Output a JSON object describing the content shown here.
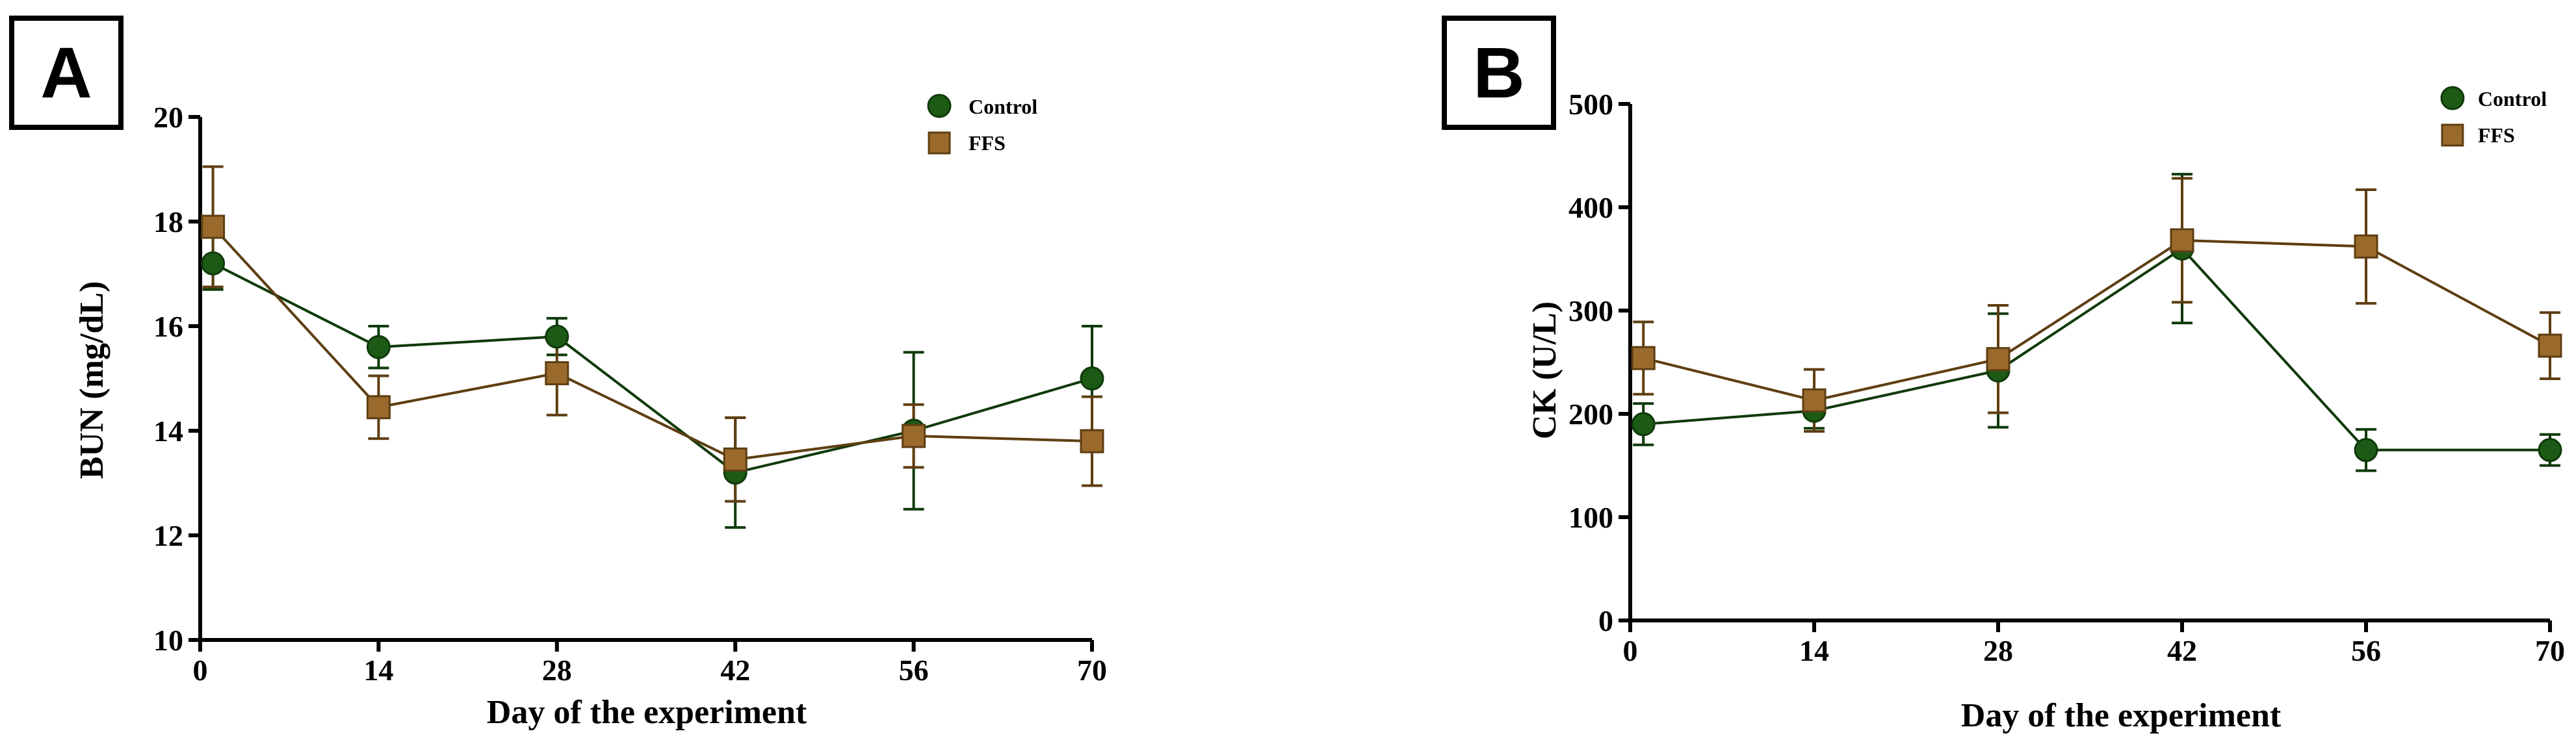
{
  "colors": {
    "control": "#1d5a15",
    "control_stroke": "#0f3a0a",
    "ffs": "#9a6a2c",
    "ffs_stroke": "#5e3e12",
    "axis": "#000000"
  },
  "chart_data": [
    {
      "panel": "A",
      "type": "line",
      "xlabel": "Day of the experiment",
      "ylabel": "BUN (mg/dL)",
      "xlim": [
        0,
        70
      ],
      "ylim": [
        10,
        20
      ],
      "xticks": [
        0,
        14,
        28,
        42,
        56,
        70
      ],
      "yticks": [
        10,
        12,
        14,
        16,
        18,
        20
      ],
      "legend_position": "top-right",
      "series": [
        {
          "name": "Control",
          "marker": "circle",
          "x": [
            1,
            14,
            28,
            42,
            56,
            70
          ],
          "y": [
            17.2,
            15.6,
            15.8,
            13.2,
            14.0,
            15.0
          ],
          "err": [
            0.5,
            0.4,
            0.35,
            1.05,
            1.5,
            1.0
          ]
        },
        {
          "name": "FFS",
          "marker": "square",
          "x": [
            1,
            14,
            28,
            42,
            56,
            70
          ],
          "y": [
            17.9,
            14.45,
            15.1,
            13.45,
            13.9,
            13.8
          ],
          "err": [
            1.15,
            0.6,
            0.8,
            0.8,
            0.6,
            0.85
          ]
        }
      ]
    },
    {
      "panel": "B",
      "type": "line",
      "xlabel": "Day of the experiment",
      "ylabel": "CK (U/L)",
      "xlim": [
        0,
        70
      ],
      "ylim": [
        0,
        500
      ],
      "xticks": [
        0,
        14,
        28,
        42,
        56,
        70
      ],
      "yticks": [
        0,
        100,
        200,
        300,
        400,
        500
      ],
      "legend_position": "top-right",
      "series": [
        {
          "name": "Control",
          "marker": "circle",
          "x": [
            1,
            14,
            28,
            42,
            56,
            70
          ],
          "y": [
            190,
            203,
            242,
            360,
            165,
            165
          ],
          "err": [
            20,
            17,
            55,
            72,
            20,
            15
          ]
        },
        {
          "name": "FFS",
          "marker": "square",
          "x": [
            1,
            14,
            28,
            42,
            56,
            70
          ],
          "y": [
            254,
            213,
            253,
            368,
            362,
            266
          ],
          "err": [
            35,
            30,
            52,
            60,
            55,
            32
          ]
        }
      ]
    }
  ]
}
